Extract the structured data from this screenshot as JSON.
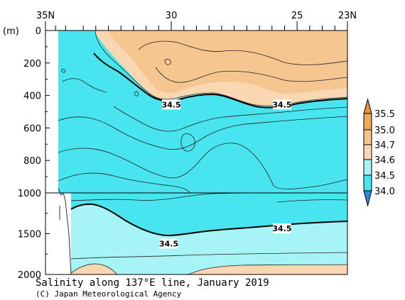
{
  "chart_data": {
    "type": "heatmap",
    "title": "Salinity along 137°E line, January 2019",
    "credit": "(C) Japan Meteorological Agency",
    "x_axis": {
      "range": [
        35,
        23
      ],
      "tick_labels": [
        {
          "value": 35,
          "label": "35N"
        },
        {
          "value": 30,
          "label": "30"
        },
        {
          "value": 25,
          "label": "25"
        },
        {
          "value": 23,
          "label": "23N"
        }
      ],
      "minor_ticks": [
        34.6,
        34.2,
        33.5,
        33.0,
        32.5,
        32.0,
        31.5,
        31.0,
        30.5,
        29.5,
        29.0,
        28.5,
        28.0,
        27.5,
        27.0,
        26.5,
        26.0,
        25.5,
        24.5,
        24.0,
        23.5
      ]
    },
    "y_axis": {
      "unit": "(m)",
      "upper_range": [
        0,
        1000
      ],
      "lower_range": [
        1000,
        2000
      ],
      "tick_labels": [
        "0",
        "200",
        "400",
        "600",
        "800",
        "1000",
        "1500",
        "2000"
      ]
    },
    "colorbar": {
      "levels": [
        "35.5",
        "35.0",
        "34.7",
        "34.6",
        "34.5",
        "34.0"
      ],
      "colors": {
        "above_35.5": "#e8913e",
        "35.0_35.5": "#f0a85c",
        "34.7_35.0": "#f5c690",
        "34.6_34.7": "#f8d7b2",
        "34.5_34.6": "#a7f4f7",
        "34.0_34.5": "#49e5ee",
        "below_34.0": "#2b8fd8"
      }
    },
    "contour_labels": [
      {
        "value": "34.5",
        "lat": 30.0,
        "depth": 460
      },
      {
        "value": "34.5",
        "lat": 25.6,
        "depth": 460
      },
      {
        "value": "34.5",
        "lat": 30.1,
        "depth": 1630
      },
      {
        "value": "34.5",
        "lat": 25.6,
        "depth": 1445
      }
    ]
  }
}
